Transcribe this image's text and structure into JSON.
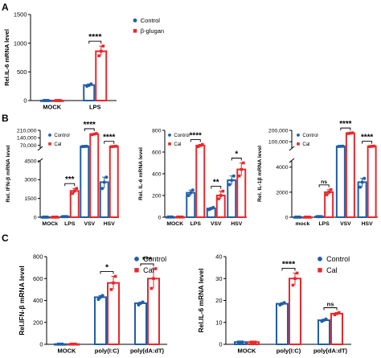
{
  "colors": {
    "control": "#1f5fa8",
    "treat": "#e8282b",
    "axis": "#000000"
  },
  "chart_data": [
    {
      "panel": "A",
      "type": "bar",
      "ylabel": "Rel.IL-6 mRNA level",
      "categories": [
        "MOCK",
        "LPS"
      ],
      "yticks": [
        0,
        500,
        1000,
        1500
      ],
      "ylim": [
        0,
        1500
      ],
      "legend": [
        "Control",
        "β-glugan"
      ],
      "legend_position": "top-right",
      "series": [
        {
          "name": "Control",
          "values": [
            1,
            270
          ],
          "points": [
            [
              1,
              1,
              1
            ],
            [
              250,
              265,
              290
            ]
          ]
        },
        {
          "name": "β-glugan",
          "values": [
            1,
            860
          ],
          "points": [
            [
              1,
              1,
              1
            ],
            [
              780,
              860,
              950
            ]
          ]
        }
      ],
      "annotations": [
        {
          "category": 1,
          "text": "****"
        }
      ]
    },
    {
      "panel": "B1",
      "type": "bar",
      "ylabel": "Rel. IFN-β mRNA level",
      "categories": [
        "MOCk",
        "LPS",
        "VSV",
        "HSV"
      ],
      "broken_axis": true,
      "lower_ticks": [
        0,
        1500,
        3000,
        4500
      ],
      "lower_range": [
        0,
        4500
      ],
      "upper_ticks": [
        70000,
        140000,
        210000
      ],
      "upper_range": [
        45000,
        210000
      ],
      "legend": [
        "Control",
        "Cal"
      ],
      "legend_position": "top-left",
      "series": [
        {
          "name": "Control",
          "values": [
            10,
            50,
            60000,
            2800
          ],
          "points": [
            [
              10,
              10,
              10
            ],
            [
              50,
              50,
              50
            ],
            [
              59000,
              60000,
              61000
            ],
            [
              2300,
              2800,
              3200
            ]
          ]
        },
        {
          "name": "Cal",
          "values": [
            10,
            2100,
            175000,
            60000
          ],
          "points": [
            [
              10,
              10,
              10
            ],
            [
              1900,
              2100,
              2300
            ],
            [
              170000,
              175000,
              180000
            ],
            [
              58000,
              60000,
              62000
            ]
          ]
        }
      ],
      "annotations": [
        {
          "category": 1,
          "text": "***"
        },
        {
          "category": 2,
          "text": "****"
        },
        {
          "category": 3,
          "text": "****"
        }
      ]
    },
    {
      "panel": "B2",
      "type": "bar",
      "ylabel": "Rel. IL-6 mRNA level",
      "categories": [
        "MOCK",
        "LPS",
        "VSV",
        "HSV"
      ],
      "yticks": [
        0,
        200,
        400,
        600,
        800
      ],
      "ylim": [
        0,
        800
      ],
      "legend": [
        "Control",
        "Cal"
      ],
      "legend_position": "top-left",
      "series": [
        {
          "name": "Control",
          "values": [
            2,
            225,
            80,
            340
          ],
          "points": [
            [
              2,
              2,
              2
            ],
            [
              200,
              225,
              250
            ],
            [
              70,
              80,
              90
            ],
            [
              300,
              340,
              380
            ]
          ]
        },
        {
          "name": "Cal",
          "values": [
            2,
            660,
            200,
            440
          ],
          "points": [
            [
              2,
              2,
              2
            ],
            [
              650,
              660,
              670
            ],
            [
              170,
              200,
              240
            ],
            [
              380,
              440,
              500
            ]
          ]
        }
      ],
      "annotations": [
        {
          "category": 1,
          "text": "****"
        },
        {
          "category": 2,
          "text": "**"
        },
        {
          "category": 3,
          "text": "*"
        }
      ]
    },
    {
      "panel": "B3",
      "type": "bar",
      "ylabel": "Rel. IL-1β mRNA level",
      "categories": [
        "mock",
        "LPS",
        "VSV",
        "HSV"
      ],
      "broken_axis": true,
      "lower_ticks": [
        0,
        2000,
        4000
      ],
      "lower_range": [
        0,
        4500
      ],
      "upper_ticks": [
        100000,
        200000
      ],
      "upper_range": [
        45000,
        200000
      ],
      "legend": [
        "Control",
        "Cal"
      ],
      "legend_position": "top-left",
      "series": [
        {
          "name": "Control",
          "values": [
            10,
            50,
            60000,
            2800
          ],
          "points": [
            [
              10,
              10,
              10
            ],
            [
              50,
              50,
              50
            ],
            [
              59000,
              60000,
              61000
            ],
            [
              2400,
              2800,
              3100
            ]
          ]
        },
        {
          "name": "Cal",
          "values": [
            10,
            2000,
            175000,
            60000
          ],
          "points": [
            [
              10,
              10,
              10
            ],
            [
              1800,
              2000,
              2200
            ],
            [
              172000,
              175000,
              178000
            ],
            [
              58000,
              60000,
              62000
            ]
          ]
        }
      ],
      "annotations": [
        {
          "category": 1,
          "text": "ns"
        },
        {
          "category": 2,
          "text": "****"
        },
        {
          "category": 3,
          "text": "****"
        }
      ]
    },
    {
      "panel": "C1",
      "type": "bar",
      "ylabel": "Rel.IFN-β mRNA level",
      "categories": [
        "MOCK",
        "poly(I:C)",
        "poly(dA:dT)"
      ],
      "yticks": [
        0,
        200,
        400,
        600,
        800
      ],
      "ylim": [
        0,
        800
      ],
      "legend": [
        "Control",
        "Cal"
      ],
      "legend_position": "top-right",
      "series": [
        {
          "name": "Control",
          "values": [
            2,
            430,
            375
          ],
          "points": [
            [
              2,
              2,
              2
            ],
            [
              410,
              430,
              445
            ],
            [
              360,
              375,
              385
            ]
          ]
        },
        {
          "name": "Cal",
          "values": [
            2,
            560,
            600
          ],
          "points": [
            [
              2,
              2,
              2
            ],
            [
              500,
              560,
              620
            ],
            [
              510,
              600,
              690
            ]
          ]
        }
      ],
      "annotations": [
        {
          "category": 1,
          "text": "*"
        },
        {
          "category": 2,
          "text": "***"
        }
      ]
    },
    {
      "panel": "C2",
      "type": "bar",
      "ylabel": "Rel.IL-6 mRNA level",
      "categories": [
        "MOCK",
        "poly(I:C)",
        "poly(dA:dT)"
      ],
      "yticks": [
        0,
        10,
        20,
        30,
        40
      ],
      "ylim": [
        0,
        40
      ],
      "legend": [
        "Control",
        "Cal"
      ],
      "legend_position": "top-right",
      "series": [
        {
          "name": "Control",
          "values": [
            1,
            18.5,
            11
          ],
          "points": [
            [
              1,
              1,
              1
            ],
            [
              18,
              18.5,
              19
            ],
            [
              10.5,
              11,
              11.5
            ]
          ]
        },
        {
          "name": "Cal",
          "values": [
            1,
            30,
            14
          ],
          "points": [
            [
              1,
              1,
              1
            ],
            [
              27,
              30,
              32.5
            ],
            [
              13.5,
              14,
              14.5
            ]
          ]
        }
      ],
      "annotations": [
        {
          "category": 1,
          "text": "****"
        },
        {
          "category": 2,
          "text": "ns"
        }
      ]
    }
  ],
  "panel_letters": [
    "A",
    "B",
    "C"
  ]
}
